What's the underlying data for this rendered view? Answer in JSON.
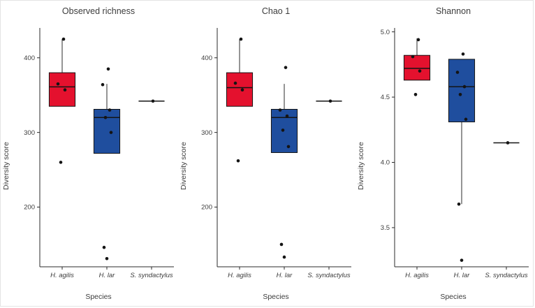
{
  "figure": {
    "xlabel": "Species",
    "ylabel": "Diversity score",
    "point_color": "#141414",
    "axis_color": "#2b2b2b",
    "species_colors": {
      "H. agilis": "#e4112e",
      "H. lar": "#1f4e9e"
    }
  },
  "chart_data": [
    {
      "type": "boxplot",
      "title": "Observed richness",
      "xlabel": "Species",
      "ylabel": "Diversity score",
      "categories": [
        "H. agilis",
        "H. lar",
        "S. syndactylus"
      ],
      "ylim": [
        120,
        440
      ],
      "yticks": [
        200,
        300,
        400
      ],
      "ytick_labels": [
        "200",
        "300",
        "400"
      ],
      "box_colors": [
        "#e4112e",
        "#1f4e9e",
        "#1f4e9e"
      ],
      "legend": "none",
      "grid": false,
      "boxes": [
        {
          "q1": 335,
          "median": 361,
          "q3": 380,
          "whisker_low": 335,
          "whisker_high": 425,
          "points": [
            425,
            365,
            357,
            260
          ]
        },
        {
          "q1": 272,
          "median": 320,
          "q3": 331,
          "whisker_low": 272,
          "whisker_high": 365,
          "points": [
            385,
            364,
            330,
            320,
            300,
            146,
            131
          ]
        },
        {
          "q1": 342,
          "median": 342,
          "q3": 342,
          "whisker_low": 342,
          "whisker_high": 342,
          "points": [
            342
          ]
        }
      ]
    },
    {
      "type": "boxplot",
      "title": "Chao 1",
      "xlabel": "Species",
      "ylabel": "Diversity score",
      "categories": [
        "H. agilis",
        "H. lar",
        "S. syndactylus"
      ],
      "ylim": [
        120,
        440
      ],
      "yticks": [
        200,
        300,
        400
      ],
      "ytick_labels": [
        "200",
        "300",
        "400"
      ],
      "box_colors": [
        "#e4112e",
        "#1f4e9e",
        "#1f4e9e"
      ],
      "legend": "none",
      "grid": false,
      "boxes": [
        {
          "q1": 335,
          "median": 360,
          "q3": 380,
          "whisker_low": 335,
          "whisker_high": 425,
          "points": [
            425,
            366,
            357,
            262
          ]
        },
        {
          "q1": 273,
          "median": 320,
          "q3": 331,
          "whisker_low": 273,
          "whisker_high": 365,
          "points": [
            387,
            330,
            322,
            303,
            281,
            150,
            133
          ]
        },
        {
          "q1": 342,
          "median": 342,
          "q3": 342,
          "whisker_low": 342,
          "whisker_high": 342,
          "points": [
            342
          ]
        }
      ]
    },
    {
      "type": "boxplot",
      "title": "Shannon",
      "xlabel": "Species",
      "ylabel": "Diversity score",
      "categories": [
        "H. agilis",
        "H. lar",
        "S. syndactylus"
      ],
      "ylim": [
        3.2,
        5.03
      ],
      "yticks": [
        3.5,
        4.0,
        4.5,
        5.0
      ],
      "ytick_labels": [
        "3.5",
        "4.0",
        "4.5",
        "5.0"
      ],
      "box_colors": [
        "#e4112e",
        "#1f4e9e",
        "#1f4e9e"
      ],
      "legend": "none",
      "grid": false,
      "boxes": [
        {
          "q1": 4.63,
          "median": 4.72,
          "q3": 4.82,
          "whisker_low": 4.63,
          "whisker_high": 4.95,
          "points": [
            4.94,
            4.81,
            4.7,
            4.52
          ]
        },
        {
          "q1": 4.31,
          "median": 4.58,
          "q3": 4.79,
          "whisker_low": 3.68,
          "whisker_high": 4.79,
          "points": [
            4.83,
            4.69,
            4.58,
            4.52,
            4.33,
            3.68,
            3.25
          ]
        },
        {
          "q1": 4.15,
          "median": 4.15,
          "q3": 4.15,
          "whisker_low": 4.15,
          "whisker_high": 4.15,
          "points": [
            4.15
          ]
        }
      ]
    }
  ]
}
